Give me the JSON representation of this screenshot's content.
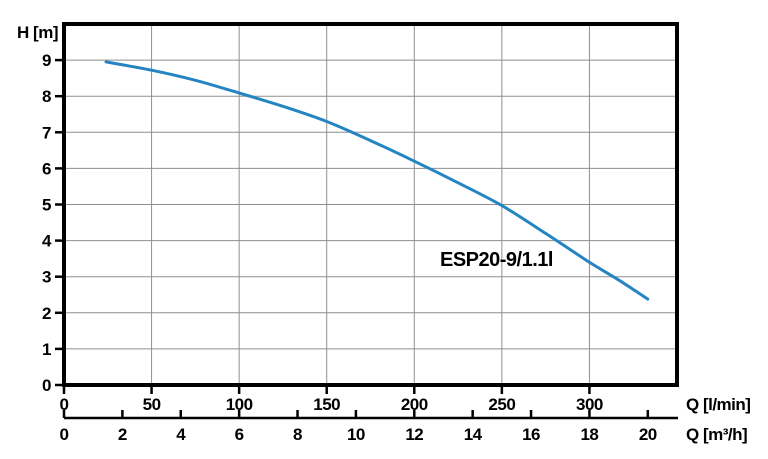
{
  "chart_data": {
    "type": "line",
    "title": "",
    "curve_label": "ESP20-9/1.1l",
    "ylabel": "H [m]",
    "xlabel_primary": "Q [l/min]",
    "xlabel_secondary": "Q [m³/h]",
    "grid": true,
    "legend": "none",
    "y_axis": {
      "unit": "m",
      "range": [
        0,
        10
      ],
      "ticks": [
        0,
        1,
        2,
        3,
        4,
        5,
        6,
        7,
        8,
        9
      ]
    },
    "x_axis_primary": {
      "unit": "l/min",
      "range": [
        0,
        350
      ],
      "ticks": [
        0,
        50,
        100,
        150,
        200,
        250,
        300
      ]
    },
    "x_axis_secondary": {
      "unit": "m3/h",
      "range": [
        0,
        21
      ],
      "ticks": [
        0,
        2,
        4,
        6,
        8,
        10,
        12,
        14,
        16,
        18,
        20
      ],
      "lmin_per_unit": 16.6667
    },
    "series": [
      {
        "name": "ESP20-9/1.1l",
        "x_lmin": [
          24,
          50,
          75,
          100,
          125,
          150,
          175,
          200,
          225,
          250,
          275,
          300,
          317,
          333.3
        ],
        "h_m": [
          8.95,
          8.72,
          8.44,
          8.09,
          7.72,
          7.3,
          6.77,
          6.2,
          5.6,
          4.97,
          4.2,
          3.4,
          2.9,
          2.38
        ]
      }
    ],
    "colors": {
      "curve": "#2585c2",
      "grid": "#8f8f8f",
      "axis": "#000000",
      "text": "#000000",
      "background": "#ffffff"
    }
  }
}
